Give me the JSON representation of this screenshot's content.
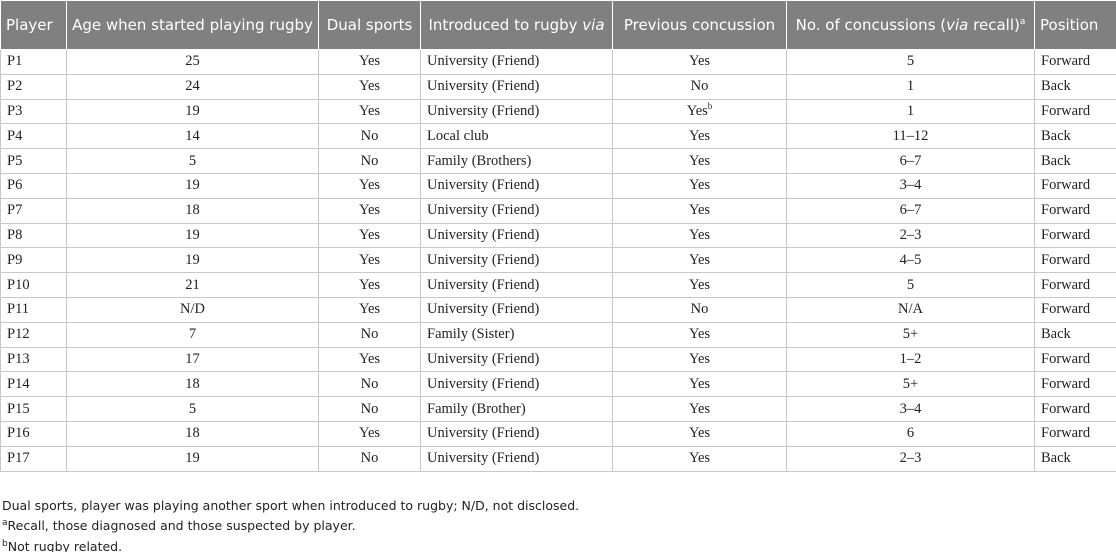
{
  "table": {
    "header": {
      "player": "Player",
      "age": "Age when started playing rugby",
      "dual": "Dual sports",
      "introduced": [
        "Introduced to rugby",
        "via"
      ],
      "previous": "Previous concussion",
      "concussions": [
        "No. of concussions (",
        "via",
        "recall)",
        "a"
      ],
      "position": "Position"
    },
    "rows": [
      [
        "P1",
        "25",
        "Yes",
        "University (Friend)",
        "Yes",
        "5",
        "Forward"
      ],
      [
        "P2",
        "24",
        "Yes",
        "University (Friend)",
        "No",
        "1",
        "Back"
      ],
      [
        "P3",
        "19",
        "Yes",
        "University (Friend)",
        [
          "Yes",
          "b"
        ],
        "1",
        "Forward"
      ],
      [
        "P4",
        "14",
        "No",
        "Local club",
        "Yes",
        "11–12",
        "Back"
      ],
      [
        "P5",
        "5",
        "No",
        "Family (Brothers)",
        "Yes",
        "6–7",
        "Back"
      ],
      [
        "P6",
        "19",
        "Yes",
        "University (Friend)",
        "Yes",
        "3–4",
        "Forward"
      ],
      [
        "P7",
        "18",
        "Yes",
        "University (Friend)",
        "Yes",
        "6–7",
        "Forward"
      ],
      [
        "P8",
        "19",
        "Yes",
        "University (Friend)",
        "Yes",
        "2–3",
        "Forward"
      ],
      [
        "P9",
        "19",
        "Yes",
        "University (Friend)",
        "Yes",
        "4–5",
        "Forward"
      ],
      [
        "P10",
        "21",
        "Yes",
        "University (Friend)",
        "Yes",
        "5",
        "Forward"
      ],
      [
        "P11",
        "N/D",
        "Yes",
        "University (Friend)",
        "No",
        "N/A",
        "Forward"
      ],
      [
        "P12",
        "7",
        "No",
        "Family (Sister)",
        "Yes",
        "5+",
        "Back"
      ],
      [
        "P13",
        "17",
        "Yes",
        "University (Friend)",
        "Yes",
        "1–2",
        "Forward"
      ],
      [
        "P14",
        "18",
        "No",
        "University (Friend)",
        "Yes",
        "5+",
        "Forward"
      ],
      [
        "P15",
        "5",
        "No",
        "Family (Brother)",
        "Yes",
        "3–4",
        "Forward"
      ],
      [
        "P16",
        "18",
        "Yes",
        "University (Friend)",
        "Yes",
        "6",
        "Forward"
      ],
      [
        "P17",
        "19",
        "No",
        "University (Friend)",
        "Yes",
        "2–3",
        "Back"
      ]
    ],
    "footnotes": [
      "Dual sports, player was playing another sport when introduced to rugby; N/D, not disclosed.",
      [
        "a",
        "Recall, those diagnosed and those suspected by player."
      ],
      [
        "b",
        "Not rugby related."
      ]
    ]
  }
}
